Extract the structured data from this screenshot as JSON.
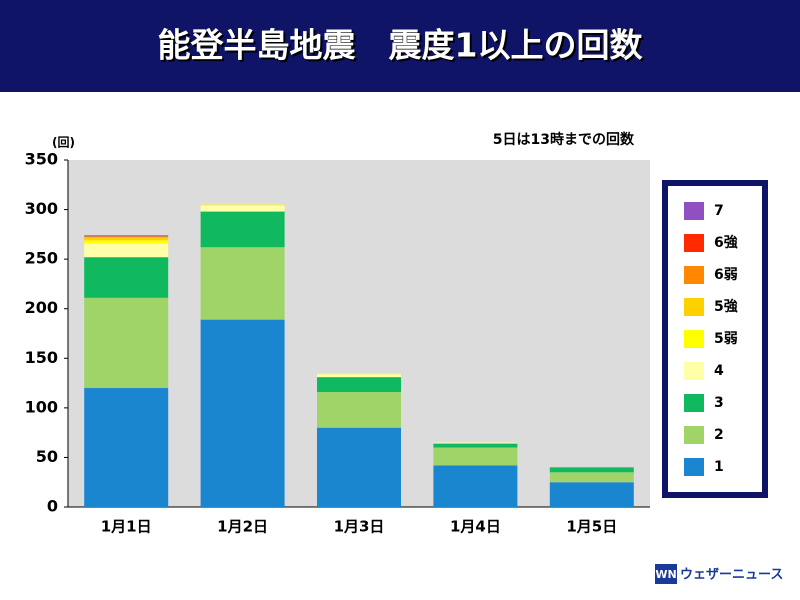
{
  "chart_data": {
    "type": "stacked_bar",
    "title": "能登半島地震　震度1以上の回数",
    "y_unit": "(回)",
    "note": "5日は13時までの回数",
    "logo": "ウェザーニュース",
    "categories": [
      "1月1日",
      "1月2日",
      "1月3日",
      "1月4日",
      "1月5日"
    ],
    "series": [
      {
        "name": "1",
        "color": "#1a86d0",
        "values": [
          120,
          189,
          80,
          42,
          25
        ]
      },
      {
        "name": "2",
        "color": "#a0d468",
        "values": [
          91,
          73,
          36,
          18,
          10
        ]
      },
      {
        "name": "3",
        "color": "#10b860",
        "values": [
          41,
          36,
          15,
          4,
          5
        ]
      },
      {
        "name": "4",
        "color": "#ffffa8",
        "values": [
          14,
          6,
          3,
          1,
          0
        ]
      },
      {
        "name": "5弱",
        "color": "#ffff00",
        "values": [
          3,
          1,
          1,
          0,
          0
        ]
      },
      {
        "name": "5強",
        "color": "#ffd000",
        "values": [
          3,
          0,
          0,
          0,
          0
        ]
      },
      {
        "name": "6弱",
        "color": "#ff8800",
        "values": [
          1,
          0,
          0,
          0,
          0
        ]
      },
      {
        "name": "6強",
        "color": "#ff2a00",
        "values": [
          0,
          0,
          0,
          0,
          0
        ]
      },
      {
        "name": "7",
        "color": "#9050c0",
        "values": [
          1,
          0,
          0,
          0,
          0
        ]
      }
    ],
    "ylim": [
      0,
      350
    ],
    "yticks": [
      0,
      50,
      100,
      150,
      200,
      250,
      300,
      350
    ],
    "grid": false,
    "legend": "right"
  }
}
